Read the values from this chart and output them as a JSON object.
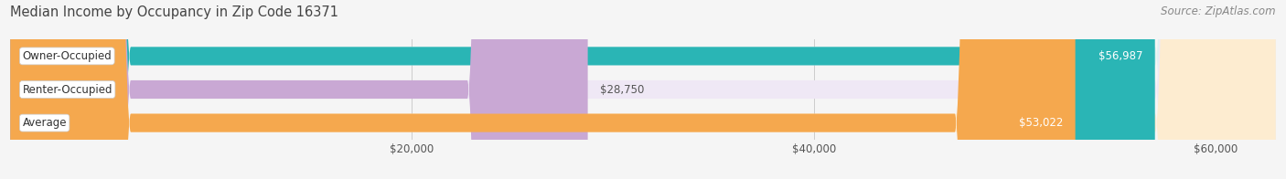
{
  "title": "Median Income by Occupancy in Zip Code 16371",
  "source": "Source: ZipAtlas.com",
  "categories": [
    "Owner-Occupied",
    "Renter-Occupied",
    "Average"
  ],
  "values": [
    56987,
    28750,
    53022
  ],
  "bar_colors": [
    "#2ab5b5",
    "#c9a8d4",
    "#f5a84e"
  ],
  "bar_bg_colors": [
    "#dff2f2",
    "#efe8f5",
    "#fdecd0"
  ],
  "value_labels": [
    "$56,987",
    "$28,750",
    "$53,022"
  ],
  "tick_labels": [
    "$20,000",
    "$40,000",
    "$60,000"
  ],
  "tick_values": [
    20000,
    40000,
    60000
  ],
  "xlim_max": 63000,
  "background_color": "#f5f5f5",
  "title_fontsize": 10.5,
  "source_fontsize": 8.5,
  "label_fontsize": 8.5,
  "value_fontsize": 8.5
}
